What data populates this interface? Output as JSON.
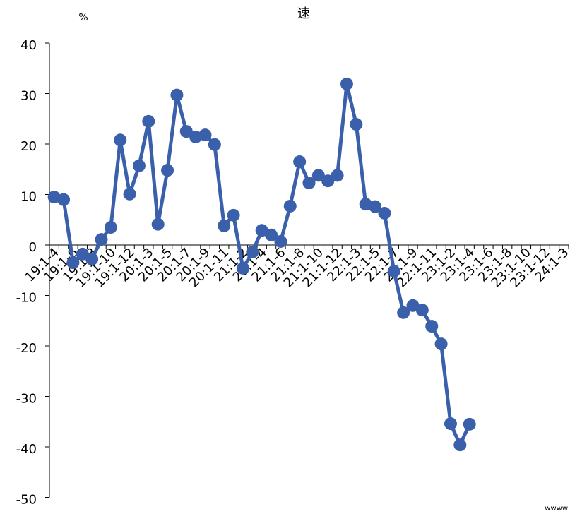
{
  "chart_data": {
    "type": "line",
    "title": "速",
    "y_unit": "%",
    "note": "wwww",
    "categories": [
      "19:1-4",
      null,
      "19:1-6",
      null,
      "19:1-8",
      null,
      "19:1-10",
      null,
      "19:1-12",
      null,
      "20:1-3",
      null,
      "20:1-5",
      null,
      "20:1-7",
      null,
      "20:1-9",
      null,
      "20:1-11",
      null,
      "21:1-2",
      null,
      "21:1-4",
      null,
      "21:1-6",
      null,
      "21:1-8",
      null,
      "21:1-10",
      null,
      "21:1-12",
      null,
      "22:1-3",
      null,
      "22:1-5",
      null,
      "22:1-7",
      null,
      "22:1-9",
      null,
      "22:1-11",
      null,
      "23:1-2",
      null,
      "23:1-4",
      null,
      "23:1-6",
      null,
      "23:1-8",
      null,
      "23:1-10",
      null,
      "23:1-12",
      null,
      "24:1-3"
    ],
    "series": [
      {
        "color": "#3a5fab",
        "values": [
          9.5,
          9.0,
          -3.5,
          -1.8,
          -2.8,
          1.1,
          3.5,
          20.8,
          10.1,
          15.7,
          24.5,
          4.1,
          14.8,
          29.7,
          22.5,
          21.4,
          21.8,
          19.9,
          3.8,
          5.9,
          -4.6,
          -1.4,
          2.9,
          2.0,
          0.7,
          7.7,
          16.5,
          12.3,
          13.8,
          12.7,
          13.8,
          31.9,
          23.9,
          8.1,
          7.6,
          6.3,
          -5.2,
          -13.4,
          -12.0,
          -12.9,
          -16.1,
          -19.6,
          -35.4,
          -39.6,
          -35.5,
          null,
          null,
          null,
          null,
          null,
          null,
          null,
          null,
          null,
          null
        ]
      }
    ],
    "ylim": [
      -50,
      40
    ],
    "yticks": [
      -50,
      -40,
      -30,
      -20,
      -10,
      0,
      10,
      20,
      30,
      40
    ],
    "grid": false
  }
}
